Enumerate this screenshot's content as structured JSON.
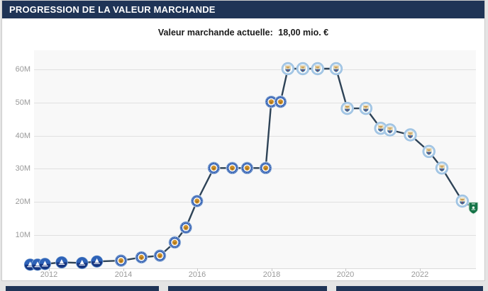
{
  "header": {
    "title": "PROGRESSION DE LA VALEUR MARCHANDE"
  },
  "subtitle": {
    "label": "Valeur marchande actuelle:",
    "value": "18,00 mio. €"
  },
  "colors": {
    "header_bg": "#1f3456",
    "page_bg": "#e4e4e4",
    "plot_bg": "#f8f8f8",
    "gridline": "#e0e0e0",
    "axis_text": "#999999",
    "line": "#2e4357",
    "next_section_bar": "#1f3456"
  },
  "chart_data": {
    "type": "line",
    "title": "Progression de la valeur marchande",
    "current_value_label": "Valeur marchande actuelle:",
    "current_value": "18,00 mio. €",
    "unit": "mio. €",
    "grid": "horizontal",
    "legend": "none",
    "xlabel": "",
    "ylabel": "",
    "xlim_years": [
      2011.6,
      2023.5
    ],
    "ylim": [
      0,
      65
    ],
    "x_ticks": [
      {
        "label": "2012",
        "year": 2012
      },
      {
        "label": "2014",
        "year": 2014
      },
      {
        "label": "2016",
        "year": 2016
      },
      {
        "label": "2018",
        "year": 2018
      },
      {
        "label": "2020",
        "year": 2020
      },
      {
        "label": "2022",
        "year": 2022
      }
    ],
    "y_ticks": [
      {
        "label": "10M",
        "value": 10
      },
      {
        "label": "20M",
        "value": 20
      },
      {
        "label": "30M",
        "value": 30
      },
      {
        "label": "40M",
        "value": 40
      },
      {
        "label": "50M",
        "value": 50
      },
      {
        "label": "60M",
        "value": 60
      }
    ],
    "club_badges": {
      "lehavre": "Le Havre AC",
      "leicester": "Leicester City",
      "mancity": "Manchester City",
      "alahli": "Al-Ahli"
    },
    "points": [
      {
        "year": 2011.55,
        "value": 0.8,
        "club": "lehavre"
      },
      {
        "year": 2011.75,
        "value": 0.8,
        "club": "lehavre"
      },
      {
        "year": 2011.95,
        "value": 1.0,
        "club": "lehavre"
      },
      {
        "year": 2012.4,
        "value": 1.5,
        "club": "lehavre"
      },
      {
        "year": 2012.95,
        "value": 1.3,
        "club": "lehavre"
      },
      {
        "year": 2013.35,
        "value": 1.75,
        "club": "lehavre"
      },
      {
        "year": 2014.0,
        "value": 2.0,
        "club": "leicester"
      },
      {
        "year": 2014.55,
        "value": 3.0,
        "club": "leicester"
      },
      {
        "year": 2015.05,
        "value": 3.5,
        "club": "leicester"
      },
      {
        "year": 2015.45,
        "value": 7.5,
        "club": "leicester"
      },
      {
        "year": 2015.75,
        "value": 12.0,
        "club": "leicester"
      },
      {
        "year": 2016.05,
        "value": 20.0,
        "club": "leicester"
      },
      {
        "year": 2016.5,
        "value": 30.0,
        "club": "leicester"
      },
      {
        "year": 2017.0,
        "value": 30.0,
        "club": "leicester"
      },
      {
        "year": 2017.4,
        "value": 30.0,
        "club": "leicester"
      },
      {
        "year": 2017.9,
        "value": 30.0,
        "club": "leicester"
      },
      {
        "year": 2018.05,
        "value": 50.0,
        "club": "leicester"
      },
      {
        "year": 2018.3,
        "value": 50.0,
        "club": "leicester"
      },
      {
        "year": 2018.5,
        "value": 60.0,
        "club": "mancity"
      },
      {
        "year": 2018.9,
        "value": 60.0,
        "club": "mancity"
      },
      {
        "year": 2019.3,
        "value": 60.0,
        "club": "mancity"
      },
      {
        "year": 2019.8,
        "value": 60.0,
        "club": "mancity"
      },
      {
        "year": 2020.1,
        "value": 48.0,
        "club": "mancity"
      },
      {
        "year": 2020.6,
        "value": 48.0,
        "club": "mancity"
      },
      {
        "year": 2021.0,
        "value": 42.0,
        "club": "mancity"
      },
      {
        "year": 2021.25,
        "value": 41.5,
        "club": "mancity"
      },
      {
        "year": 2021.8,
        "value": 40.0,
        "club": "mancity"
      },
      {
        "year": 2022.3,
        "value": 35.0,
        "club": "mancity"
      },
      {
        "year": 2022.65,
        "value": 30.0,
        "club": "mancity"
      },
      {
        "year": 2023.2,
        "value": 20.0,
        "club": "mancity"
      },
      {
        "year": 2023.5,
        "value": 18.0,
        "club": "alahli"
      }
    ]
  }
}
